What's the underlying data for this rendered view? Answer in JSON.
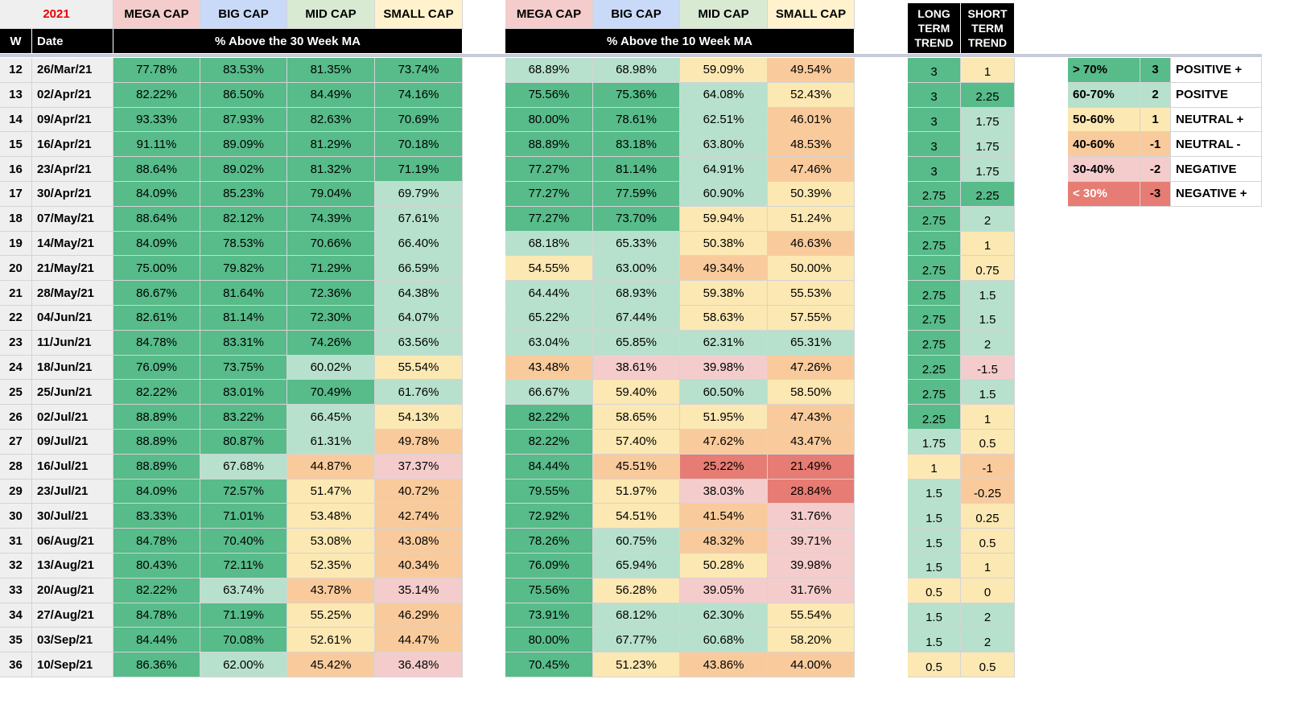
{
  "header": {
    "year": "2021",
    "caps": [
      "MEGA CAP",
      "BIG CAP",
      "MID CAP",
      "SMALL CAP"
    ],
    "cap_colors": [
      "#f4cccc",
      "#c9daf8",
      "#d9ead3",
      "#fff2cc"
    ],
    "w": "W",
    "date": "Date",
    "ma30_title": "% Above the 30 Week MA",
    "ma10_title": "% Above the 10 Week MA",
    "long_trend": "LONG TERM TREND",
    "short_trend": "SHORT TERM TREND"
  },
  "table": {
    "rows": [
      {
        "w": "12",
        "date": "26/Mar/21",
        "ma30": [
          "77.78%",
          "83.53%",
          "81.35%",
          "73.74%"
        ],
        "ma10": [
          "68.89%",
          "68.98%",
          "59.09%",
          "49.54%"
        ],
        "long": "3",
        "short": "1",
        "long_color": "#57bb8a",
        "short_color": "#fce8b2"
      },
      {
        "w": "13",
        "date": "02/Apr/21",
        "ma30": [
          "82.22%",
          "86.50%",
          "84.49%",
          "74.16%"
        ],
        "ma10": [
          "75.56%",
          "75.36%",
          "64.08%",
          "52.43%"
        ],
        "long": "3",
        "short": "2.25",
        "long_color": "#57bb8a",
        "short_color": "#57bb8a"
      },
      {
        "w": "14",
        "date": "09/Apr/21",
        "ma30": [
          "93.33%",
          "87.93%",
          "82.63%",
          "70.69%"
        ],
        "ma10": [
          "80.00%",
          "78.61%",
          "62.51%",
          "46.01%"
        ],
        "long": "3",
        "short": "1.75",
        "long_color": "#57bb8a",
        "short_color": "#b7e1cd"
      },
      {
        "w": "15",
        "date": "16/Apr/21",
        "ma30": [
          "91.11%",
          "89.09%",
          "81.29%",
          "70.18%"
        ],
        "ma10": [
          "88.89%",
          "83.18%",
          "63.80%",
          "48.53%"
        ],
        "long": "3",
        "short": "1.75",
        "long_color": "#57bb8a",
        "short_color": "#b7e1cd"
      },
      {
        "w": "16",
        "date": "23/Apr/21",
        "ma30": [
          "88.64%",
          "89.02%",
          "81.32%",
          "71.19%"
        ],
        "ma10": [
          "77.27%",
          "81.14%",
          "64.91%",
          "47.46%"
        ],
        "long": "3",
        "short": "1.75",
        "long_color": "#57bb8a",
        "short_color": "#b7e1cd"
      },
      {
        "w": "17",
        "date": "30/Apr/21",
        "ma30": [
          "84.09%",
          "85.23%",
          "79.04%",
          "69.79%"
        ],
        "ma10": [
          "77.27%",
          "77.59%",
          "60.90%",
          "50.39%"
        ],
        "long": "2.75",
        "short": "2.25",
        "long_color": "#57bb8a",
        "short_color": "#57bb8a"
      },
      {
        "w": "18",
        "date": "07/May/21",
        "ma30": [
          "88.64%",
          "82.12%",
          "74.39%",
          "67.61%"
        ],
        "ma10": [
          "77.27%",
          "73.70%",
          "59.94%",
          "51.24%"
        ],
        "long": "2.75",
        "short": "2",
        "long_color": "#57bb8a",
        "short_color": "#b7e1cd"
      },
      {
        "w": "19",
        "date": "14/May/21",
        "ma30": [
          "84.09%",
          "78.53%",
          "70.66%",
          "66.40%"
        ],
        "ma10": [
          "68.18%",
          "65.33%",
          "50.38%",
          "46.63%"
        ],
        "long": "2.75",
        "short": "1",
        "long_color": "#57bb8a",
        "short_color": "#fce8b2"
      },
      {
        "w": "20",
        "date": "21/May/21",
        "ma30": [
          "75.00%",
          "79.82%",
          "71.29%",
          "66.59%"
        ],
        "ma10": [
          "54.55%",
          "63.00%",
          "49.34%",
          "50.00%"
        ],
        "long": "2.75",
        "short": "0.75",
        "long_color": "#57bb8a",
        "short_color": "#fce8b2"
      },
      {
        "w": "21",
        "date": "28/May/21",
        "ma30": [
          "86.67%",
          "81.64%",
          "72.36%",
          "64.38%"
        ],
        "ma10": [
          "64.44%",
          "68.93%",
          "59.38%",
          "55.53%"
        ],
        "long": "2.75",
        "short": "1.5",
        "long_color": "#57bb8a",
        "short_color": "#b7e1cd"
      },
      {
        "w": "22",
        "date": "04/Jun/21",
        "ma30": [
          "82.61%",
          "81.14%",
          "72.30%",
          "64.07%"
        ],
        "ma10": [
          "65.22%",
          "67.44%",
          "58.63%",
          "57.55%"
        ],
        "long": "2.75",
        "short": "1.5",
        "long_color": "#57bb8a",
        "short_color": "#b7e1cd"
      },
      {
        "w": "23",
        "date": "11/Jun/21",
        "ma30": [
          "84.78%",
          "83.31%",
          "74.26%",
          "63.56%"
        ],
        "ma10": [
          "63.04%",
          "65.85%",
          "62.31%",
          "65.31%"
        ],
        "long": "2.75",
        "short": "2",
        "long_color": "#57bb8a",
        "short_color": "#b7e1cd"
      },
      {
        "w": "24",
        "date": "18/Jun/21",
        "ma30": [
          "76.09%",
          "73.75%",
          "60.02%",
          "55.54%"
        ],
        "ma10": [
          "43.48%",
          "38.61%",
          "39.98%",
          "47.26%"
        ],
        "long": "2.25",
        "short": "-1.5",
        "long_color": "#57bb8a",
        "short_color": "#f4cccc"
      },
      {
        "w": "25",
        "date": "25/Jun/21",
        "ma30": [
          "82.22%",
          "83.01%",
          "70.49%",
          "61.76%"
        ],
        "ma10": [
          "66.67%",
          "59.40%",
          "60.50%",
          "58.50%"
        ],
        "long": "2.75",
        "short": "1.5",
        "long_color": "#57bb8a",
        "short_color": "#b7e1cd"
      },
      {
        "w": "26",
        "date": "02/Jul/21",
        "ma30": [
          "88.89%",
          "83.22%",
          "66.45%",
          "54.13%"
        ],
        "ma10": [
          "82.22%",
          "58.65%",
          "51.95%",
          "47.43%"
        ],
        "long": "2.25",
        "short": "1",
        "long_color": "#57bb8a",
        "short_color": "#fce8b2"
      },
      {
        "w": "27",
        "date": "09/Jul/21",
        "ma30": [
          "88.89%",
          "80.87%",
          "61.31%",
          "49.78%"
        ],
        "ma10": [
          "82.22%",
          "57.40%",
          "47.62%",
          "43.47%"
        ],
        "long": "1.75",
        "short": "0.5",
        "long_color": "#b7e1cd",
        "short_color": "#fce8b2"
      },
      {
        "w": "28",
        "date": "16/Jul/21",
        "ma30": [
          "88.89%",
          "67.68%",
          "44.87%",
          "37.37%"
        ],
        "ma10": [
          "84.44%",
          "45.51%",
          "25.22%",
          "21.49%"
        ],
        "long": "1",
        "short": "-1",
        "long_color": "#fce8b2",
        "short_color": "#f9cb9c"
      },
      {
        "w": "29",
        "date": "23/Jul/21",
        "ma30": [
          "84.09%",
          "72.57%",
          "51.47%",
          "40.72%"
        ],
        "ma10": [
          "79.55%",
          "51.97%",
          "38.03%",
          "28.84%"
        ],
        "long": "1.5",
        "short": "-0.25",
        "long_color": "#b7e1cd",
        "short_color": "#f9cb9c"
      },
      {
        "w": "30",
        "date": "30/Jul/21",
        "ma30": [
          "83.33%",
          "71.01%",
          "53.48%",
          "42.74%"
        ],
        "ma10": [
          "72.92%",
          "54.51%",
          "41.54%",
          "31.76%"
        ],
        "long": "1.5",
        "short": "0.25",
        "long_color": "#b7e1cd",
        "short_color": "#fce8b2"
      },
      {
        "w": "31",
        "date": "06/Aug/21",
        "ma30": [
          "84.78%",
          "70.40%",
          "53.08%",
          "43.08%"
        ],
        "ma10": [
          "78.26%",
          "60.75%",
          "48.32%",
          "39.71%"
        ],
        "long": "1.5",
        "short": "0.5",
        "long_color": "#b7e1cd",
        "short_color": "#fce8b2"
      },
      {
        "w": "32",
        "date": "13/Aug/21",
        "ma30": [
          "80.43%",
          "72.11%",
          "52.35%",
          "40.34%"
        ],
        "ma10": [
          "76.09%",
          "65.94%",
          "50.28%",
          "39.98%"
        ],
        "long": "1.5",
        "short": "1",
        "long_color": "#b7e1cd",
        "short_color": "#fce8b2"
      },
      {
        "w": "33",
        "date": "20/Aug/21",
        "ma30": [
          "82.22%",
          "63.74%",
          "43.78%",
          "35.14%"
        ],
        "ma10": [
          "75.56%",
          "56.28%",
          "39.05%",
          "31.76%"
        ],
        "long": "0.5",
        "short": "0",
        "long_color": "#fce8b2",
        "short_color": "#fce8b2"
      },
      {
        "w": "34",
        "date": "27/Aug/21",
        "ma30": [
          "84.78%",
          "71.19%",
          "55.25%",
          "46.29%"
        ],
        "ma10": [
          "73.91%",
          "68.12%",
          "62.30%",
          "55.54%"
        ],
        "long": "1.5",
        "short": "2",
        "long_color": "#b7e1cd",
        "short_color": "#b7e1cd"
      },
      {
        "w": "35",
        "date": "03/Sep/21",
        "ma30": [
          "84.44%",
          "70.08%",
          "52.61%",
          "44.47%"
        ],
        "ma10": [
          "80.00%",
          "67.77%",
          "60.68%",
          "58.20%"
        ],
        "long": "1.5",
        "short": "2",
        "long_color": "#b7e1cd",
        "short_color": "#b7e1cd"
      },
      {
        "w": "36",
        "date": "10/Sep/21",
        "ma30": [
          "86.36%",
          "62.00%",
          "45.42%",
          "36.48%"
        ],
        "ma10": [
          "70.45%",
          "51.23%",
          "43.86%",
          "44.00%"
        ],
        "long": "0.5",
        "short": "0.5",
        "long_color": "#fce8b2",
        "short_color": "#fce8b2"
      }
    ]
  },
  "legend": [
    {
      "range": "> 70%",
      "score": "3",
      "label": "POSITIVE +",
      "color": "#57bb8a"
    },
    {
      "range": "60-70%",
      "score": "2",
      "label": "POSITVE",
      "color": "#b7e1cd"
    },
    {
      "range": "50-60%",
      "score": "1",
      "label": "NEUTRAL +",
      "color": "#fce8b2"
    },
    {
      "range": "40-60%",
      "score": "-1",
      "label": "NEUTRAL -",
      "color": "#f9cb9c"
    },
    {
      "range": "30-40%",
      "score": "-2",
      "label": "NEGATIVE",
      "color": "#f4cccc"
    },
    {
      "range": "< 30%",
      "score": "-3",
      "label": "NEGATIVE +",
      "color": "#e67c73"
    }
  ]
}
